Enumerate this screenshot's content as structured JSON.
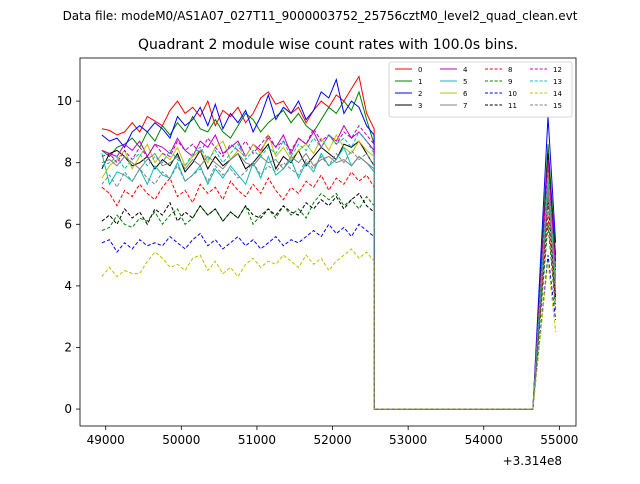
{
  "suptitle": "Data file: modeM0/AS1A07_027T11_9000003752_25756cztM0_level2_quad_clean.evt",
  "chart_data": {
    "type": "line",
    "title": "Quadrant 2 module wise count rates with 100.0s bins.",
    "xlabel": "",
    "ylabel": "",
    "x_offset_label": "+3.314e8",
    "xlim": [
      48660,
      55220
    ],
    "ylim": [
      -0.55,
      11.4
    ],
    "xticks": [
      49000,
      50000,
      51000,
      52000,
      53000,
      54000,
      55000
    ],
    "yticks": [
      0,
      2,
      4,
      6,
      8,
      10
    ],
    "legend_location": "upper right",
    "legend_columns": 4,
    "grid": false,
    "x": {
      "start": 48950,
      "step": 100,
      "count": 37,
      "tail": [
        52550,
        54650,
        54850,
        54950
      ]
    },
    "series": [
      {
        "name": "0",
        "color": "#ff0000",
        "dash": "solid",
        "values": [
          9.1,
          9.05,
          8.9,
          9.0,
          9.3,
          9.0,
          9.5,
          9.35,
          9.2,
          9.7,
          10.0,
          9.6,
          9.8,
          9.5,
          10.0,
          9.2,
          9.7,
          9.5,
          9.8,
          9.3,
          9.6,
          10.1,
          10.3,
          9.9,
          10.0,
          9.6,
          9.8,
          9.3,
          9.7,
          10.0,
          9.8,
          10.2,
          10.0,
          10.4,
          10.8,
          9.6,
          9.1
        ],
        "tail": [
          0,
          0,
          6.9,
          4.3
        ]
      },
      {
        "name": "1",
        "color": "#008000",
        "dash": "solid",
        "values": [
          8.4,
          8.2,
          8.5,
          8.6,
          8.8,
          8.5,
          9.0,
          8.7,
          9.2,
          8.9,
          9.3,
          9.0,
          9.5,
          9.1,
          9.0,
          9.4,
          9.0,
          8.8,
          9.2,
          9.6,
          9.4,
          9.0,
          9.3,
          9.5,
          9.7,
          9.3,
          9.6,
          9.2,
          9.0,
          9.4,
          9.8,
          9.6,
          10.0,
          9.7,
          10.3,
          9.4,
          8.6
        ],
        "tail": [
          0,
          0,
          8.6,
          5.0
        ]
      },
      {
        "name": "2",
        "color": "#0000ff",
        "dash": "solid",
        "values": [
          8.9,
          8.7,
          8.8,
          8.5,
          9.0,
          9.2,
          9.0,
          9.3,
          9.1,
          8.8,
          9.5,
          9.2,
          9.4,
          9.8,
          9.2,
          9.9,
          9.1,
          9.6,
          9.3,
          9.7,
          9.0,
          9.5,
          10.2,
          9.4,
          9.8,
          9.6,
          10.0,
          9.4,
          9.7,
          10.3,
          10.1,
          10.7,
          9.6,
          10.0,
          9.8,
          9.2,
          8.9
        ],
        "tail": [
          0,
          0,
          9.5,
          5.4
        ]
      },
      {
        "name": "3",
        "color": "#000000",
        "dash": "solid",
        "values": [
          7.8,
          8.3,
          8.4,
          8.2,
          7.9,
          8.0,
          8.2,
          7.8,
          8.1,
          7.9,
          8.3,
          7.7,
          8.0,
          8.4,
          7.8,
          8.2,
          7.9,
          8.1,
          8.3,
          7.8,
          8.0,
          8.3,
          8.6,
          7.8,
          8.2,
          8.0,
          8.4,
          7.9,
          8.2,
          8.5,
          8.3,
          8.1,
          8.6,
          8.5,
          8.7,
          8.3,
          7.9
        ],
        "tail": [
          0,
          0,
          8.3,
          4.8
        ]
      },
      {
        "name": "4",
        "color": "#bf00bf",
        "dash": "solid",
        "values": [
          8.4,
          8.3,
          8.2,
          8.6,
          8.4,
          8.7,
          8.2,
          8.6,
          8.5,
          8.3,
          8.8,
          8.4,
          8.2,
          8.7,
          8.5,
          8.9,
          8.3,
          8.5,
          8.7,
          8.2,
          8.6,
          8.4,
          8.8,
          8.5,
          8.9,
          8.3,
          8.8,
          8.6,
          9.0,
          8.5,
          8.9,
          8.7,
          9.2,
          8.8,
          9.0,
          8.7,
          8.4
        ],
        "tail": [
          0,
          0,
          8.1,
          4.6
        ]
      },
      {
        "name": "5",
        "color": "#00bfbf",
        "dash": "solid",
        "values": [
          8.3,
          7.3,
          7.7,
          7.6,
          7.4,
          7.8,
          7.3,
          7.9,
          7.6,
          7.5,
          8.0,
          7.4,
          7.6,
          7.9,
          7.3,
          7.8,
          7.5,
          7.9,
          7.6,
          7.3,
          8.0,
          7.5,
          8.2,
          7.6,
          7.8,
          8.1,
          7.5,
          8.0,
          7.7,
          8.3,
          7.9,
          8.1,
          8.5,
          7.9,
          8.2,
          8.0,
          7.7
        ],
        "tail": [
          0,
          0,
          7.3,
          4.1
        ]
      },
      {
        "name": "6",
        "color": "#bfbf00",
        "dash": "solid",
        "values": [
          7.5,
          7.9,
          8.1,
          8.4,
          7.8,
          8.2,
          8.6,
          8.0,
          8.3,
          8.1,
          8.5,
          7.9,
          8.2,
          8.4,
          8.0,
          8.5,
          8.7,
          8.1,
          8.4,
          8.2,
          8.6,
          8.3,
          8.9,
          8.2,
          8.5,
          8.1,
          8.4,
          8.6,
          8.3,
          8.8,
          8.4,
          8.9,
          8.5,
          8.3,
          8.7,
          8.4,
          8.2
        ],
        "tail": [
          0,
          0,
          7.7,
          3.9
        ]
      },
      {
        "name": "7",
        "color": "#808080",
        "dash": "solid",
        "values": [
          8.0,
          8.1,
          7.9,
          8.2,
          8.0,
          7.8,
          8.1,
          8.3,
          7.9,
          8.0,
          8.2,
          7.8,
          8.1,
          7.9,
          8.2,
          8.0,
          7.8,
          8.1,
          8.3,
          8.0,
          7.9,
          8.2,
          8.0,
          8.1,
          7.8,
          8.2,
          8.0,
          8.3,
          7.9,
          8.1,
          8.2,
          8.0,
          8.1,
          7.9,
          8.2,
          8.0,
          7.8
        ],
        "tail": [
          0,
          0,
          7.2,
          3.7
        ]
      },
      {
        "name": "8",
        "color": "#ff0000",
        "dash": "dashed",
        "values": [
          7.2,
          7.0,
          6.6,
          7.1,
          6.9,
          7.3,
          7.0,
          6.8,
          7.2,
          7.5,
          6.9,
          7.1,
          6.7,
          7.3,
          7.0,
          7.2,
          6.8,
          7.4,
          7.1,
          6.9,
          7.3,
          7.0,
          7.5,
          7.1,
          6.8,
          7.2,
          7.0,
          7.4,
          7.2,
          7.6,
          7.1,
          7.5,
          7.3,
          7.7,
          7.4,
          7.6,
          7.2
        ],
        "tail": [
          0,
          0,
          6.3,
          3.4
        ]
      },
      {
        "name": "9",
        "color": "#008000",
        "dash": "dashed",
        "values": [
          5.8,
          5.9,
          6.3,
          6.0,
          5.9,
          6.2,
          6.1,
          6.4,
          6.0,
          6.3,
          6.5,
          6.0,
          6.2,
          6.6,
          6.3,
          6.5,
          6.1,
          6.4,
          6.2,
          6.6,
          6.0,
          6.3,
          6.5,
          6.2,
          6.6,
          6.3,
          6.5,
          6.2,
          6.7,
          7.0,
          6.8,
          7.0,
          6.6,
          6.8,
          6.5,
          6.9,
          6.6
        ],
        "tail": [
          0,
          0,
          6.0,
          3.2
        ]
      },
      {
        "name": "10",
        "color": "#0000ff",
        "dash": "dashed",
        "values": [
          5.4,
          5.5,
          5.1,
          5.4,
          5.2,
          5.5,
          5.3,
          5.4,
          5.3,
          5.6,
          5.4,
          5.2,
          5.5,
          5.7,
          5.3,
          5.5,
          5.2,
          5.4,
          5.6,
          5.3,
          5.5,
          5.2,
          5.4,
          5.6,
          5.3,
          5.5,
          5.4,
          5.6,
          5.8,
          5.6,
          6.0,
          5.7,
          5.9,
          5.6,
          6.0,
          5.8,
          5.6
        ],
        "tail": [
          0,
          0,
          5.0,
          2.9
        ]
      },
      {
        "name": "11",
        "color": "#000000",
        "dash": "dashed",
        "values": [
          6.1,
          6.3,
          6.0,
          6.5,
          6.2,
          6.4,
          6.0,
          6.5,
          6.3,
          6.7,
          6.1,
          6.4,
          6.2,
          6.6,
          6.3,
          6.5,
          6.1,
          6.4,
          6.2,
          6.6,
          6.3,
          6.2,
          6.5,
          6.3,
          6.6,
          6.4,
          6.3,
          6.7,
          6.5,
          6.8,
          6.6,
          6.9,
          6.5,
          6.8,
          7.0,
          6.6,
          6.4
        ],
        "tail": [
          0,
          0,
          6.8,
          3.6
        ]
      },
      {
        "name": "12",
        "color": "#bf00bf",
        "dash": "dashed",
        "values": [
          8.2,
          8.3,
          8.0,
          8.4,
          8.1,
          8.5,
          8.2,
          8.6,
          8.3,
          8.2,
          8.7,
          8.4,
          8.6,
          8.3,
          8.8,
          8.5,
          8.2,
          8.6,
          8.4,
          8.7,
          8.3,
          8.6,
          8.9,
          8.5,
          8.7,
          8.4,
          8.8,
          8.6,
          9.1,
          8.7,
          8.9,
          8.6,
          9.0,
          8.8,
          9.2,
          8.9,
          8.6
        ],
        "tail": [
          0,
          0,
          8.0,
          4.5
        ]
      },
      {
        "name": "13",
        "color": "#00bfbf",
        "dash": "dashed",
        "values": [
          7.9,
          8.0,
          8.2,
          7.8,
          8.1,
          8.3,
          7.9,
          8.2,
          8.0,
          8.4,
          8.1,
          7.9,
          8.3,
          8.5,
          8.1,
          8.4,
          8.0,
          8.3,
          8.6,
          8.1,
          8.4,
          8.2,
          8.5,
          8.3,
          8.7,
          8.2,
          8.6,
          8.4,
          8.8,
          8.5,
          8.9,
          8.6,
          8.8,
          8.5,
          9.0,
          8.7,
          8.3
        ],
        "tail": [
          0,
          0,
          7.5,
          4.2
        ]
      },
      {
        "name": "14",
        "color": "#bfbf00",
        "dash": "dashed",
        "values": [
          4.3,
          4.6,
          4.3,
          4.5,
          4.4,
          4.4,
          4.8,
          5.1,
          4.9,
          4.6,
          4.7,
          4.5,
          4.9,
          5.0,
          4.5,
          4.8,
          4.4,
          4.6,
          4.3,
          4.7,
          4.9,
          4.6,
          4.8,
          4.7,
          5.0,
          4.8,
          4.6,
          5.0,
          4.7,
          4.9,
          4.5,
          4.8,
          5.0,
          5.2,
          4.9,
          5.1,
          4.8
        ],
        "tail": [
          0,
          0,
          4.8,
          2.5
        ]
      },
      {
        "name": "15",
        "color": "#808080",
        "dash": "dashed",
        "values": [
          7.3,
          7.6,
          7.2,
          7.7,
          7.4,
          7.8,
          7.5,
          7.3,
          7.7,
          7.5,
          7.9,
          7.4,
          7.6,
          7.8,
          7.4,
          7.9,
          7.6,
          7.8,
          7.5,
          7.7,
          8.0,
          7.6,
          7.9,
          7.7,
          8.0,
          7.8,
          7.6,
          8.1,
          7.8,
          8.2,
          7.9,
          8.3,
          8.0,
          8.4,
          8.1,
          8.3,
          7.9
        ],
        "tail": [
          0,
          0,
          7.0,
          3.8
        ]
      }
    ]
  }
}
